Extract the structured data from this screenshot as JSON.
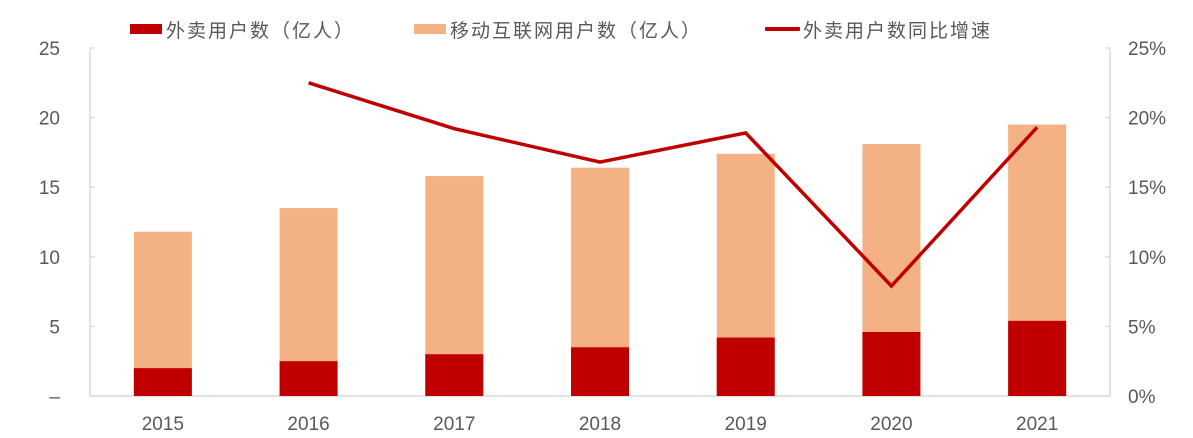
{
  "legend": {
    "items": [
      {
        "label": "外卖用户数（亿人）",
        "type": "box",
        "color": "#C00000"
      },
      {
        "label": "移动互联网用户数（亿人）",
        "type": "box",
        "color": "#F4B183"
      },
      {
        "label": "外卖用户数同比增速",
        "type": "line",
        "color": "#C00000"
      }
    ]
  },
  "chart_data": {
    "type": "bar",
    "title": "",
    "categories": [
      "2015",
      "2016",
      "2017",
      "2018",
      "2019",
      "2020",
      "2021"
    ],
    "series": [
      {
        "name": "移动互联网用户数（亿人）",
        "type": "bar",
        "axis": "left",
        "color": "#F4B183",
        "values": [
          11.8,
          13.5,
          15.8,
          16.4,
          17.4,
          18.1,
          19.5
        ]
      },
      {
        "name": "外卖用户数（亿人）",
        "type": "bar",
        "axis": "left",
        "color": "#C00000",
        "values": [
          2.0,
          2.5,
          3.0,
          3.5,
          4.2,
          4.6,
          5.4
        ]
      },
      {
        "name": "外卖用户数同比增速",
        "type": "line",
        "axis": "right",
        "color": "#C00000",
        "values": [
          null,
          22.5,
          19.2,
          16.8,
          18.9,
          7.9,
          19.3
        ]
      }
    ],
    "bars_overlap": true,
    "xlabel": "",
    "ylabel": "",
    "ylim": [
      0,
      25
    ],
    "y_ticks": [
      "–",
      "5",
      "10",
      "15",
      "20",
      "25"
    ],
    "y2lim": [
      0,
      25
    ],
    "y2_ticks": [
      "0%",
      "5%",
      "10%",
      "15%",
      "20%",
      "25%"
    ],
    "grid": false,
    "legend_position": "top"
  }
}
